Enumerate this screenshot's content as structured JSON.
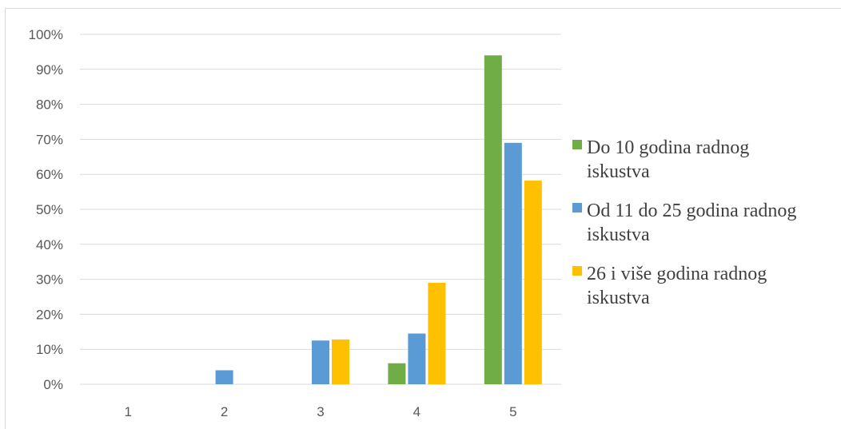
{
  "chart_data": {
    "type": "bar",
    "categories": [
      "1",
      "2",
      "3",
      "4",
      "5"
    ],
    "series": [
      {
        "name": "Do 10 godina radnog iskustva",
        "color": "#70ad47",
        "values": [
          0,
          0,
          0,
          6,
          94
        ]
      },
      {
        "name": "Od 11 do 25 godina radnog iskustva",
        "color": "#5b9bd5",
        "values": [
          0,
          4,
          12.5,
          14.5,
          69
        ]
      },
      {
        "name": "26 i više godina radnog iskustva",
        "color": "#ffc000",
        "values": [
          0,
          0,
          12.8,
          29,
          58.2
        ]
      }
    ],
    "yticks": [
      "0%",
      "10%",
      "20%",
      "30%",
      "40%",
      "50%",
      "60%",
      "70%",
      "80%",
      "90%",
      "100%"
    ],
    "ylim": [
      0,
      100
    ],
    "grid": true,
    "legend_position": "right",
    "legend_lines": [
      [
        "Do 10 godina radnog",
        "iskustva"
      ],
      [
        "Od 11 do 25 godina radnog",
        "iskustva"
      ],
      [
        "26 i više godina radnog",
        "iskustva"
      ]
    ]
  }
}
